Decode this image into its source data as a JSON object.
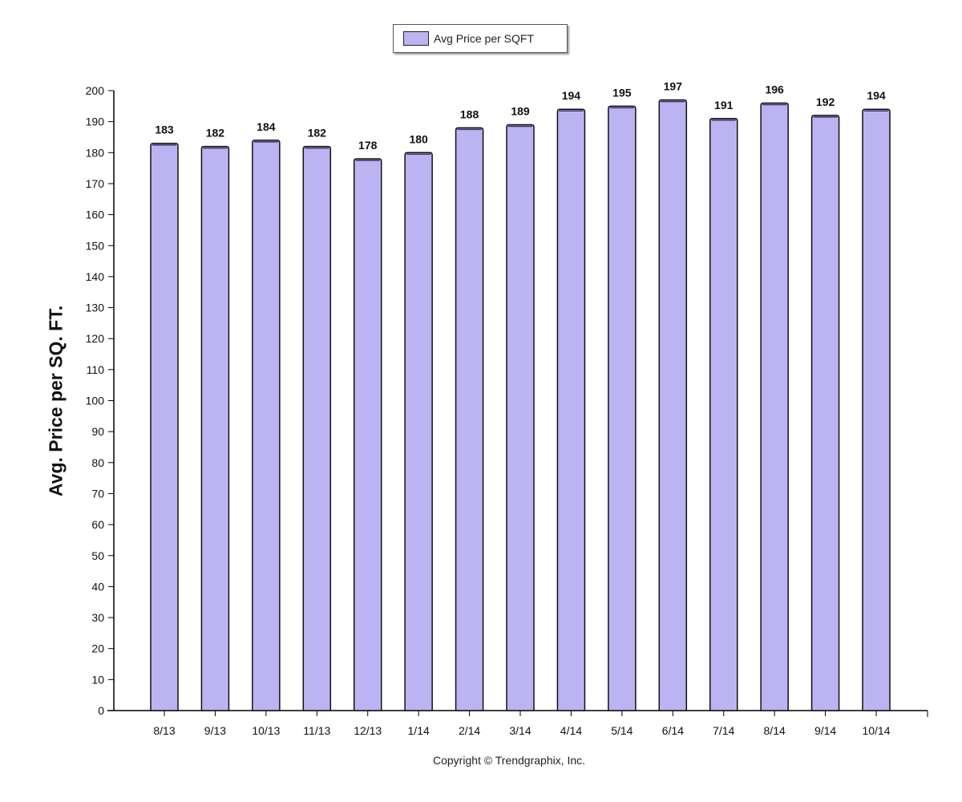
{
  "legend": {
    "label": "Avg Price per SQFT"
  },
  "copyright": "Copyright © Trendgraphix, Inc.",
  "colors": {
    "bar_fill": "#bcb4f2",
    "bar_stroke": "#111111",
    "axis": "#000000"
  },
  "chart_data": {
    "type": "bar",
    "title": "",
    "xlabel": "",
    "ylabel": "Avg. Price per SQ. FT.",
    "categories": [
      "8/13",
      "9/13",
      "10/13",
      "11/13",
      "12/13",
      "1/14",
      "2/14",
      "3/14",
      "4/14",
      "5/14",
      "6/14",
      "7/14",
      "8/14",
      "9/14",
      "10/14"
    ],
    "series": [
      {
        "name": "Avg Price per SQFT",
        "values": [
          183,
          182,
          184,
          182,
          178,
          180,
          188,
          189,
          194,
          195,
          197,
          191,
          196,
          192,
          194
        ]
      }
    ],
    "ylim": [
      0,
      200
    ],
    "yticks": [
      0,
      10,
      20,
      30,
      40,
      50,
      60,
      70,
      80,
      90,
      100,
      110,
      120,
      130,
      140,
      150,
      160,
      170,
      180,
      190,
      200
    ],
    "data_labels": true,
    "grid": false,
    "legend_position": "top-center"
  }
}
